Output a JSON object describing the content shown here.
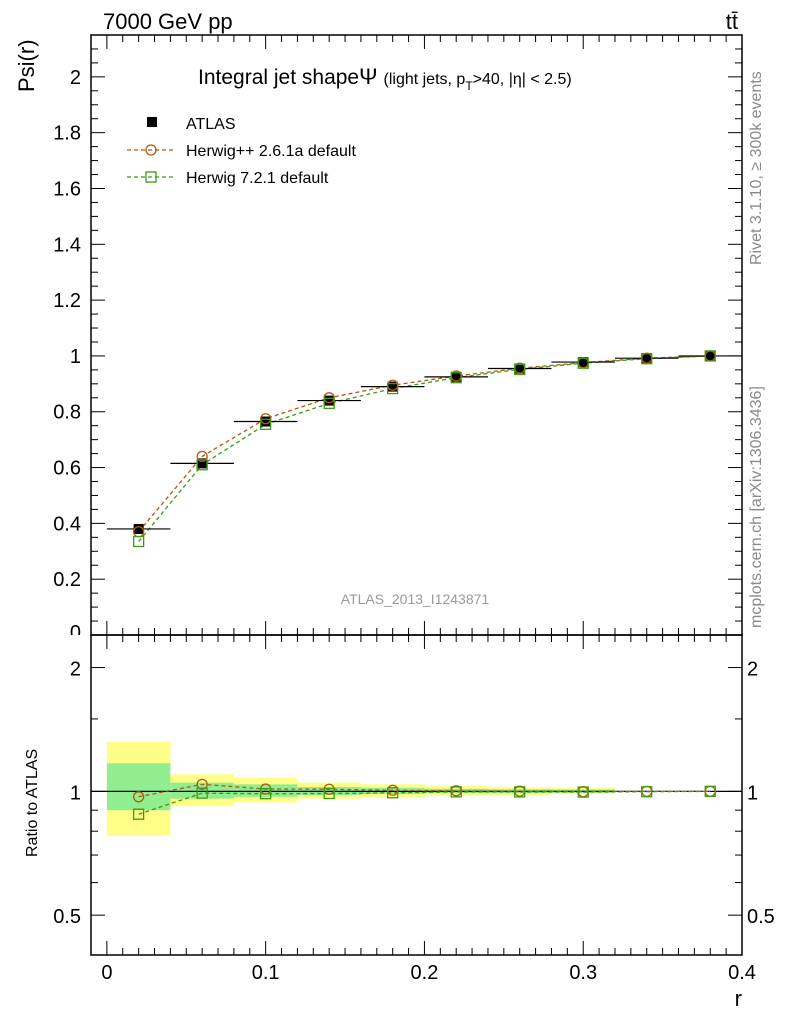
{
  "header": {
    "left": "7000 GeV pp",
    "right": "tt̄"
  },
  "side_labels": {
    "rivet": "Rivet 3.1.10, ≥ 300k events",
    "mcplots": "mcplots.cern.ch [arXiv:1306.3436]"
  },
  "watermark": "ATLAS_2013_I1243871",
  "main_plot": {
    "title_main": "Integral jet shape",
    "title_symbol": "Ψ",
    "title_sub_pre": "(light jets, p",
    "title_sub_T": "T",
    "title_sub_post": ">40, |η| < 2.5)",
    "ylabel": "Psi(r)"
  },
  "ratio_plot": {
    "ylabel": "Ratio to ATLAS",
    "xlabel": "r"
  },
  "colors": {
    "herwig_pp": "#b35a10",
    "herwig7": "#3c9a14",
    "band_outer": "#ffff88",
    "band_inner": "#90ee90"
  },
  "chart_data": [
    {
      "type": "scatter",
      "title": "Integral jet shape Ψ (light jets, pT>40, |η| < 2.5)",
      "xlabel": "r",
      "ylabel": "Psi(r)",
      "xlim": [
        -0.01,
        0.4
      ],
      "ylim": [
        0,
        2.15
      ],
      "x_ticks": [
        "0",
        "0.1",
        "0.2",
        "0.3",
        "0.4"
      ],
      "y_ticks": [
        "0.2",
        "0.4",
        "0.6",
        "0.8",
        "1",
        "1.2",
        "1.4",
        "1.6",
        "1.8",
        "2"
      ],
      "y_ticks_cut": "0",
      "legend_position": "top-left",
      "x": [
        0.02,
        0.06,
        0.1,
        0.14,
        0.18,
        0.22,
        0.26,
        0.3,
        0.34,
        0.38
      ],
      "series": [
        {
          "name": "ATLAS",
          "values": [
            0.38,
            0.615,
            0.765,
            0.84,
            0.89,
            0.925,
            0.955,
            0.978,
            0.992,
            1.0
          ],
          "errors": [
            0.012,
            0.012,
            0.012,
            0.01,
            0.01,
            0.008,
            0.008,
            0.006,
            0.004,
            0.002
          ]
        },
        {
          "name": "Herwig++ 2.6.1a default",
          "values": [
            0.37,
            0.64,
            0.775,
            0.85,
            0.895,
            0.928,
            0.956,
            0.976,
            0.992,
            1.0
          ]
        },
        {
          "name": "Herwig 7.2.1 default",
          "values": [
            0.335,
            0.61,
            0.755,
            0.83,
            0.883,
            0.922,
            0.952,
            0.974,
            0.99,
            1.0
          ]
        }
      ]
    },
    {
      "type": "scatter",
      "ylabel": "Ratio to ATLAS",
      "xlabel": "r",
      "xlim": [
        -0.01,
        0.4
      ],
      "ylim": [
        0.4,
        2.4
      ],
      "log_y": true,
      "y_ticks": [
        "0.5",
        "1",
        "2"
      ],
      "x": [
        0.02,
        0.06,
        0.1,
        0.14,
        0.18,
        0.22,
        0.26,
        0.3,
        0.34,
        0.38
      ],
      "bands": [
        {
          "x0": 0.0,
          "x1": 0.04,
          "outer": [
            0.78,
            1.32
          ],
          "inner": [
            0.9,
            1.17
          ]
        },
        {
          "x0": 0.04,
          "x1": 0.08,
          "outer": [
            0.92,
            1.1
          ],
          "inner": [
            0.96,
            1.05
          ]
        },
        {
          "x0": 0.08,
          "x1": 0.12,
          "outer": [
            0.94,
            1.08
          ],
          "inner": [
            0.97,
            1.04
          ]
        },
        {
          "x0": 0.12,
          "x1": 0.16,
          "outer": [
            0.96,
            1.05
          ],
          "inner": [
            0.98,
            1.025
          ]
        },
        {
          "x0": 0.16,
          "x1": 0.2,
          "outer": [
            0.965,
            1.04
          ],
          "inner": [
            0.985,
            1.02
          ]
        },
        {
          "x0": 0.2,
          "x1": 0.24,
          "outer": [
            0.975,
            1.03
          ],
          "inner": [
            0.99,
            1.015
          ]
        },
        {
          "x0": 0.24,
          "x1": 0.28,
          "outer": [
            0.98,
            1.025
          ],
          "inner": [
            0.99,
            1.012
          ]
        },
        {
          "x0": 0.28,
          "x1": 0.32,
          "outer": [
            0.985,
            1.02
          ],
          "inner": [
            0.993,
            1.01
          ]
        }
      ],
      "series": [
        {
          "name": "Herwig++ 2.6.1a default",
          "values": [
            0.97,
            1.04,
            1.013,
            1.012,
            1.006,
            1.003,
            1.001,
            0.998,
            1.0,
            1.0
          ]
        },
        {
          "name": "Herwig 7.2.1 default",
          "values": [
            0.88,
            0.99,
            0.987,
            0.988,
            0.992,
            0.997,
            0.997,
            0.996,
            0.998,
            1.0
          ]
        }
      ]
    }
  ]
}
